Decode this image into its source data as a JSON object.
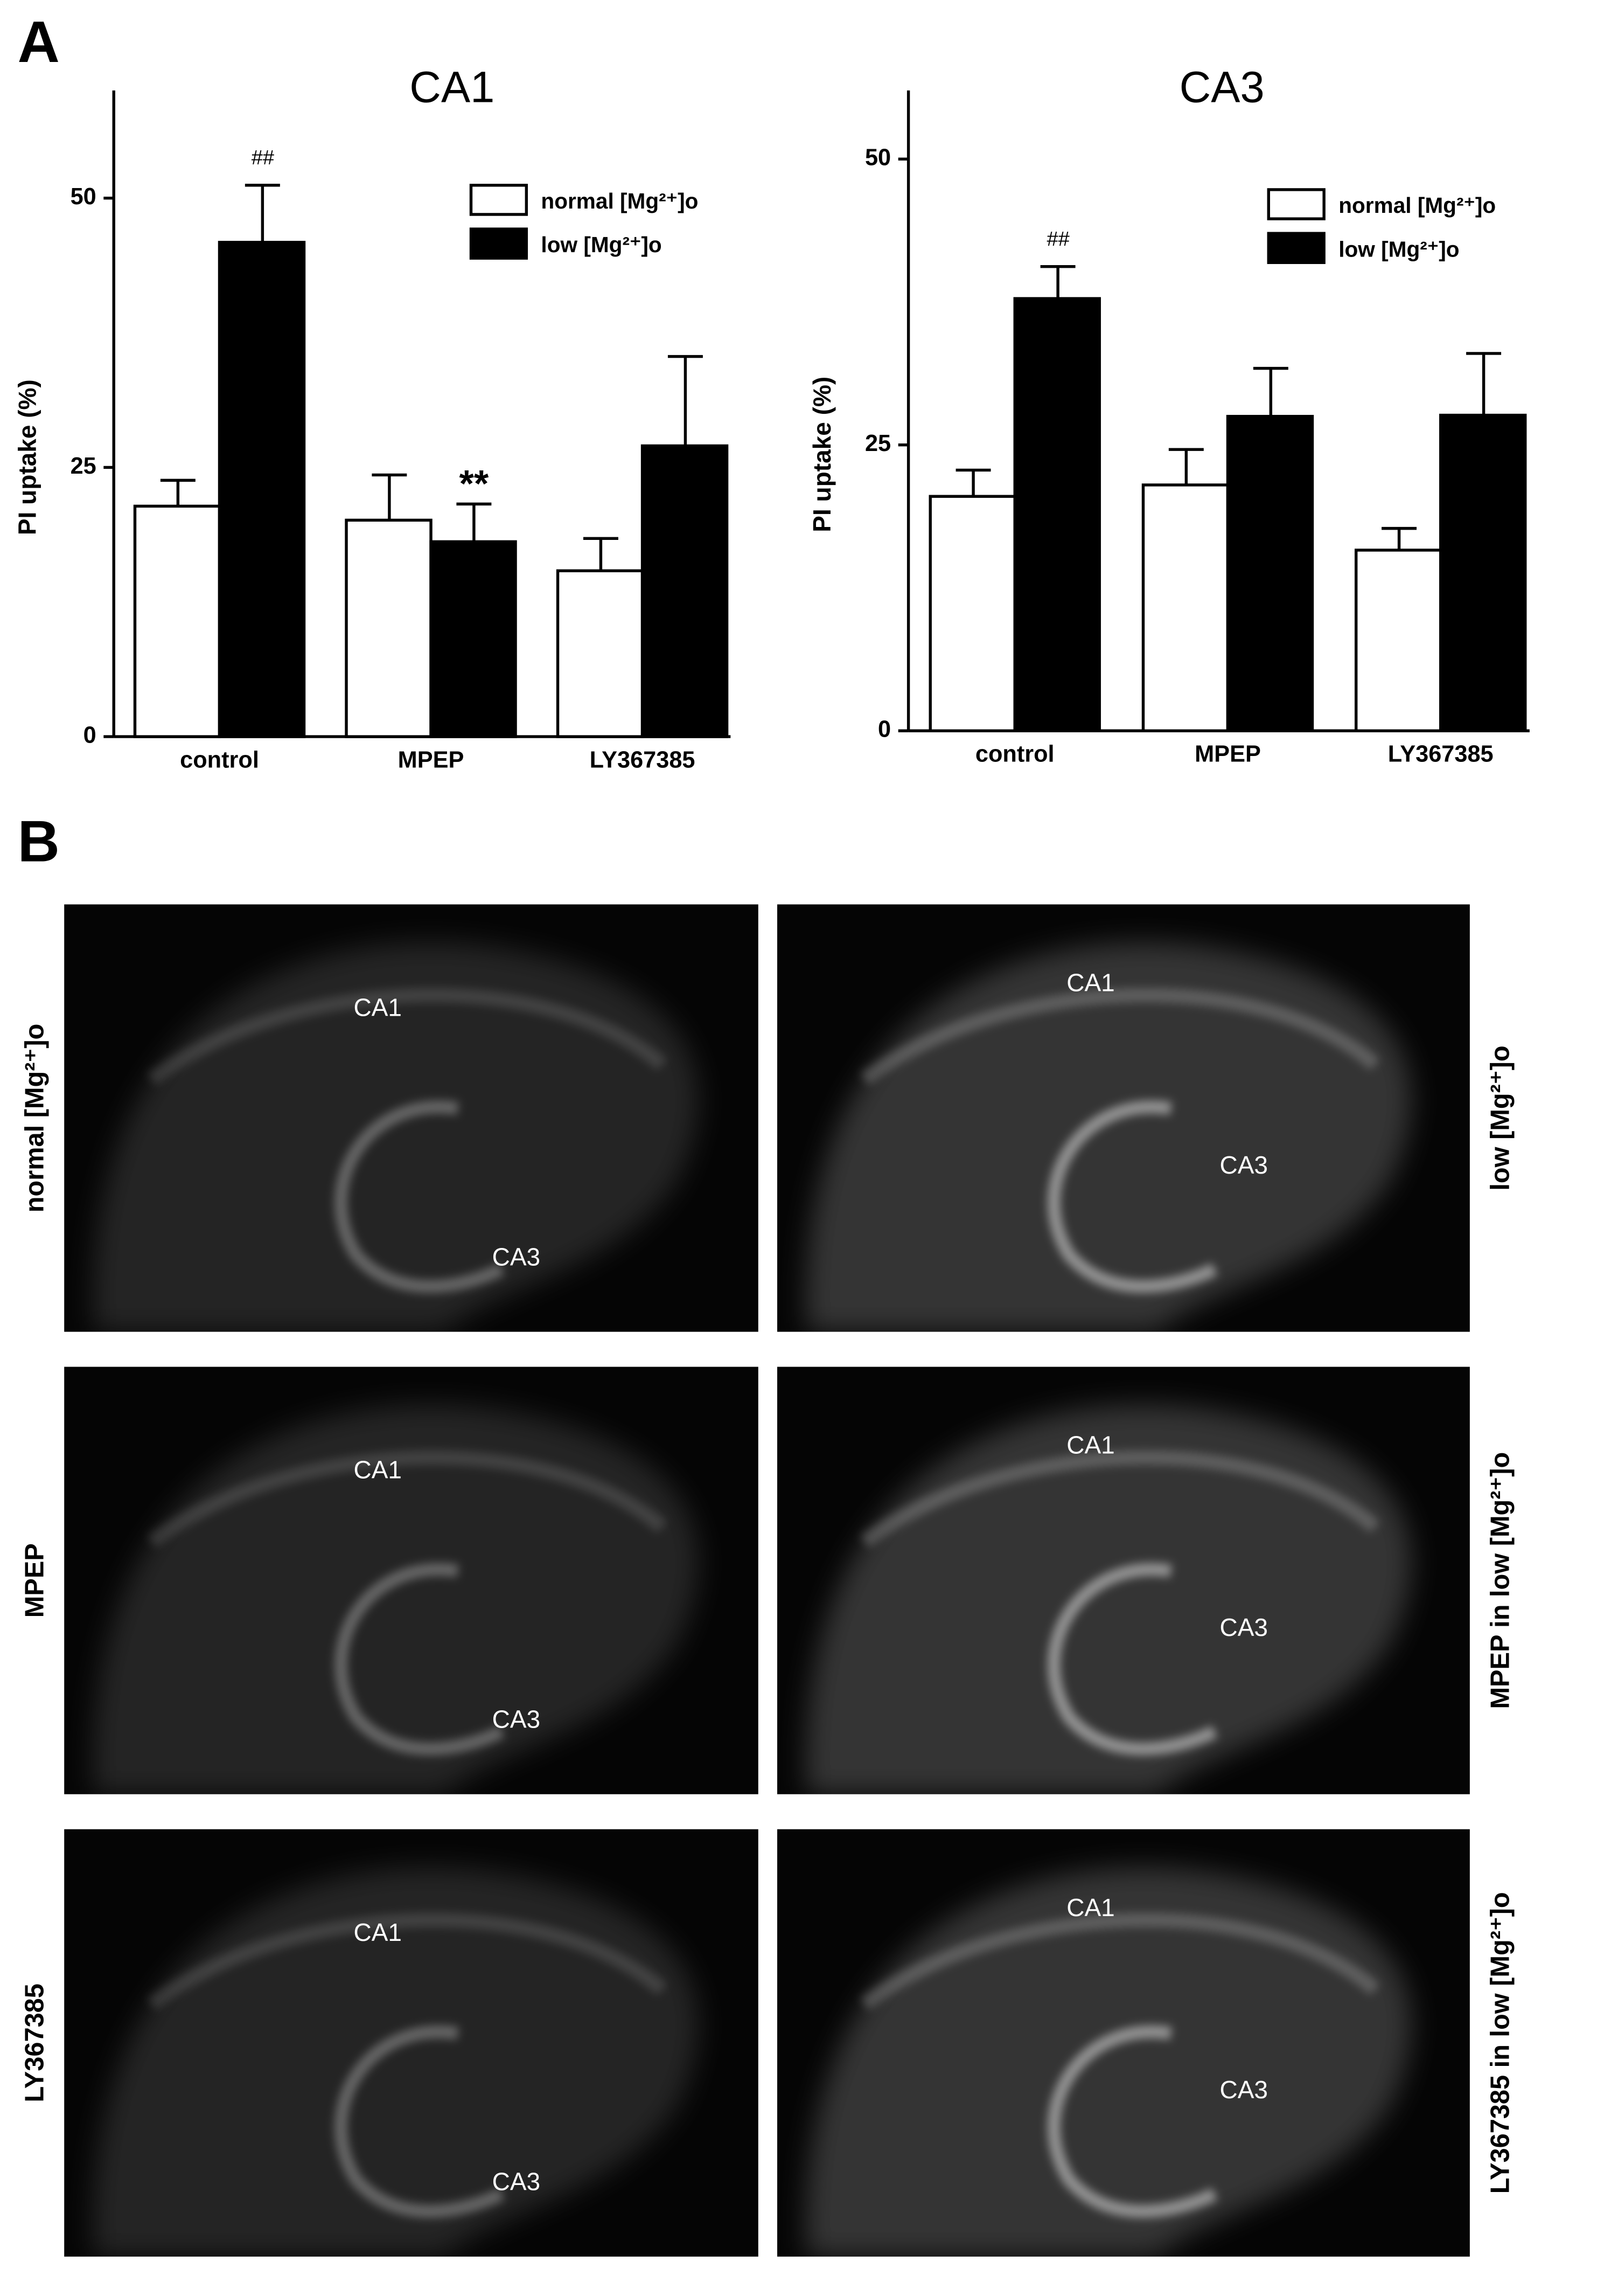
{
  "panel_labels": [
    "A",
    "B"
  ],
  "chart_data": [
    {
      "type": "bar",
      "title": "CA1",
      "y_label": "PI uptake (%)",
      "categories": [
        "control",
        "MPEP",
        "LY367385"
      ],
      "series": [
        {
          "name": "normal [Mg²⁺]o",
          "color": "#ffffff",
          "values": [
            21.4,
            20.1,
            15.4
          ],
          "errors": [
            2.4,
            4.2,
            3.0
          ]
        },
        {
          "name": "low  [Mg²⁺]o",
          "color": "#000000",
          "values": [
            45.9,
            18.1,
            27.0
          ],
          "errors": [
            5.3,
            3.5,
            8.3
          ]
        }
      ],
      "annotations": [
        "##",
        "**"
      ],
      "ylim": [
        0,
        60
      ],
      "yticks": [
        0,
        25,
        50
      ],
      "legend": "upper right"
    },
    {
      "type": "bar",
      "title": "CA3",
      "y_label": "PI uptake (%)",
      "categories": [
        "control",
        "MPEP",
        "LY367385"
      ],
      "series": [
        {
          "name": "normal [Mg²⁺]o",
          "color": "#ffffff",
          "values": [
            20.5,
            21.5,
            15.8
          ],
          "errors": [
            2.3,
            3.1,
            1.9
          ]
        },
        {
          "name": "low  [Mg²⁺]o",
          "color": "#000000",
          "values": [
            37.8,
            27.5,
            27.6
          ],
          "errors": [
            2.8,
            4.2,
            5.4
          ]
        }
      ],
      "annotations": [
        "##"
      ],
      "ylim": [
        0,
        56
      ],
      "yticks": [
        0,
        25,
        50
      ],
      "legend": "upper right"
    }
  ],
  "micrographs": [
    {
      "side_label": "normal  [Mg²⁺]o",
      "regions": [
        "CA1",
        "CA3"
      ]
    },
    {
      "side_label": "low  [Mg²⁺]o",
      "regions": [
        "CA1",
        "CA3"
      ]
    },
    {
      "side_label": "MPEP",
      "regions": [
        "CA1",
        "CA3"
      ]
    },
    {
      "side_label": "MPEP in  low  [Mg²⁺]o",
      "regions": [
        "CA1",
        "CA3"
      ]
    },
    {
      "side_label": "LY367385",
      "regions": [
        "CA1",
        "CA3"
      ]
    },
    {
      "side_label": "LY367385 in  low  [Mg²⁺]o",
      "regions": [
        "CA1",
        "CA3"
      ]
    }
  ]
}
